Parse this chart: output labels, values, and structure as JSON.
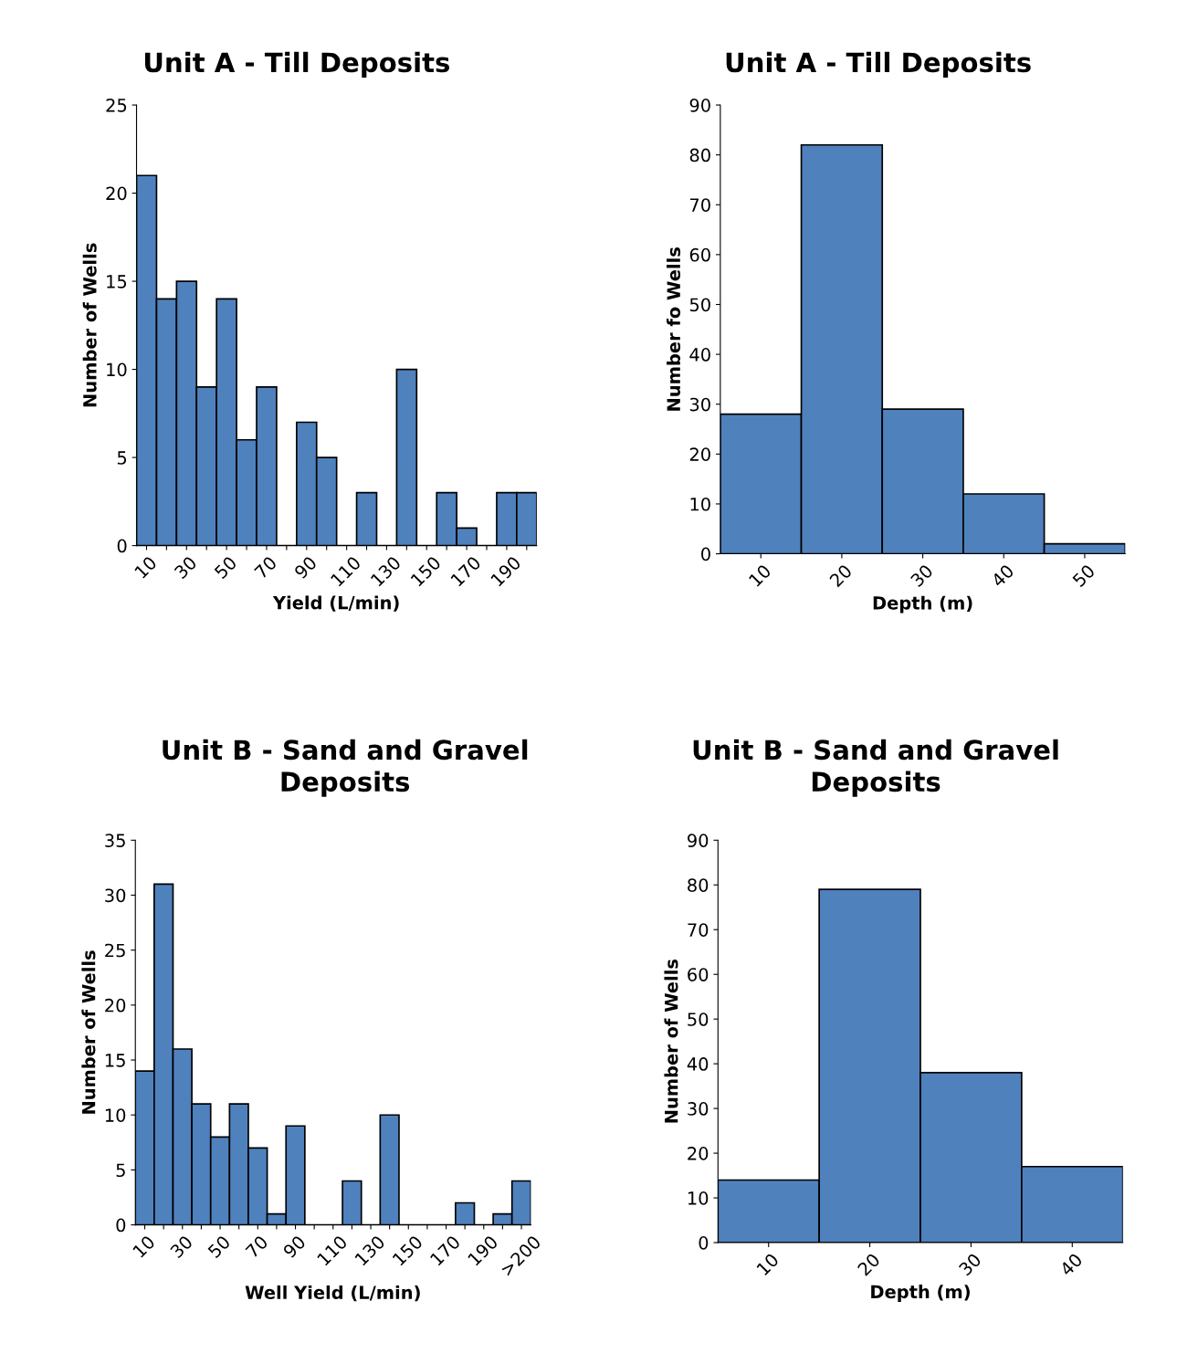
{
  "chart_data": [
    {
      "type": "bar",
      "title": "Unit A - Till Deposits",
      "xlabel": "Yield (L/min)",
      "ylabel": "Number of Wells",
      "categories": [
        "10",
        null,
        "30",
        null,
        "50",
        null,
        "70",
        null,
        "90",
        null,
        "110",
        null,
        "130",
        null,
        "150",
        null,
        "170",
        null,
        "190",
        null
      ],
      "values": [
        21,
        14,
        15,
        9,
        14,
        6,
        9,
        0,
        7,
        5,
        0,
        3,
        0,
        10,
        0,
        3,
        1,
        0,
        3,
        3
      ],
      "color": "#4f81bd",
      "ylim": [
        0,
        25
      ],
      "yticks": [
        0,
        5,
        10,
        15,
        20,
        25
      ],
      "grid": false,
      "legend": false
    },
    {
      "type": "bar",
      "title": "Unit A - Till Deposits",
      "xlabel": "Depth (m)",
      "ylabel": "Number fo Wells",
      "categories": [
        "10",
        "20",
        "30",
        "40",
        "50"
      ],
      "values": [
        28,
        82,
        29,
        12,
        2
      ],
      "color": "#4f81bd",
      "ylim": [
        0,
        90
      ],
      "yticks": [
        0,
        10,
        20,
        30,
        40,
        50,
        60,
        70,
        80,
        90
      ],
      "grid": false,
      "legend": false
    },
    {
      "type": "bar",
      "title": "Unit B - Sand and Gravel Deposits",
      "xlabel": "Well Yield (L/min)",
      "ylabel": "Number of Wells",
      "categories": [
        "10",
        null,
        "30",
        null,
        "50",
        null,
        "70",
        null,
        "90",
        null,
        "110",
        null,
        "130",
        null,
        "150",
        null,
        "170",
        null,
        "190",
        null,
        ">200"
      ],
      "values": [
        14,
        31,
        16,
        11,
        8,
        11,
        7,
        1,
        9,
        0,
        0,
        4,
        0,
        10,
        0,
        0,
        0,
        2,
        0,
        1,
        4
      ],
      "color": "#4f81bd",
      "ylim": [
        0,
        35
      ],
      "yticks": [
        0,
        5,
        10,
        15,
        20,
        25,
        30,
        35
      ],
      "grid": false,
      "legend": false
    },
    {
      "type": "bar",
      "title": "Unit B - Sand and Gravel Deposits",
      "xlabel": "Depth (m)",
      "ylabel": "Number of Wells",
      "categories": [
        "10",
        "20",
        "30",
        "40"
      ],
      "values": [
        14,
        79,
        38,
        17
      ],
      "color": "#4f81bd",
      "ylim": [
        0,
        90
      ],
      "yticks": [
        0,
        10,
        20,
        30,
        40,
        50,
        60,
        70,
        80,
        90
      ],
      "grid": false,
      "legend": false
    }
  ]
}
